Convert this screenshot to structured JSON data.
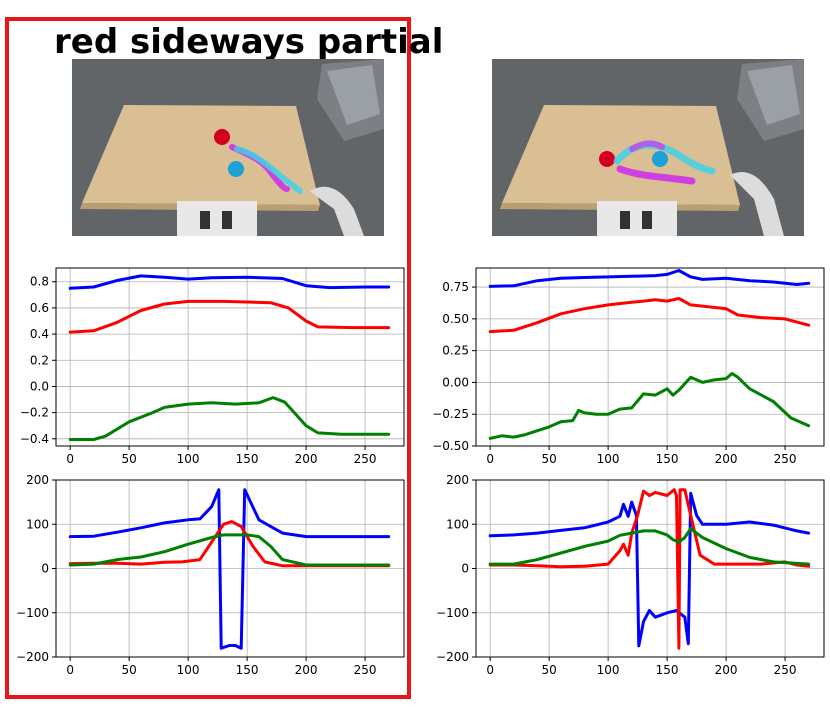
{
  "panel_left": {
    "title": "red sideways partial"
  },
  "photos": [
    {
      "name": "scene-photo-left",
      "table_color": "#d9bf93",
      "floor_color": "#5d6063"
    },
    {
      "name": "scene-photo-right",
      "table_color": "#d9bf93",
      "floor_color": "#5d6063"
    }
  ],
  "colors": {
    "frame": "#e8141a",
    "red": "#ff0000",
    "green": "#008000",
    "blue": "#0000ff",
    "grid": "#b0b0b0"
  },
  "chart_data": [
    {
      "type": "line",
      "id": "left-top",
      "title": "",
      "xlabel": "",
      "ylabel": "",
      "xlim": [
        -12,
        283
      ],
      "ylim": [
        -0.455,
        0.905
      ],
      "xticks": [
        0,
        50,
        100,
        150,
        200,
        250
      ],
      "yticks": [
        -0.4,
        -0.2,
        0.0,
        0.2,
        0.4,
        0.6,
        0.8
      ],
      "ytick_labels": [
        "−0.4",
        "−0.2",
        "0.0",
        "0.2",
        "0.4",
        "0.6",
        "0.8"
      ],
      "grid": true,
      "series": [
        {
          "color": "blue",
          "points": [
            [
              0,
              0.75
            ],
            [
              20,
              0.76
            ],
            [
              40,
              0.81
            ],
            [
              60,
              0.845
            ],
            [
              80,
              0.835
            ],
            [
              100,
              0.82
            ],
            [
              120,
              0.83
            ],
            [
              150,
              0.835
            ],
            [
              180,
              0.825
            ],
            [
              200,
              0.77
            ],
            [
              220,
              0.755
            ],
            [
              250,
              0.76
            ],
            [
              270,
              0.76
            ]
          ]
        },
        {
          "color": "red",
          "points": [
            [
              0,
              0.415
            ],
            [
              20,
              0.425
            ],
            [
              40,
              0.49
            ],
            [
              60,
              0.58
            ],
            [
              80,
              0.63
            ],
            [
              100,
              0.65
            ],
            [
              130,
              0.65
            ],
            [
              170,
              0.64
            ],
            [
              185,
              0.6
            ],
            [
              200,
              0.5
            ],
            [
              210,
              0.455
            ],
            [
              240,
              0.45
            ],
            [
              270,
              0.45
            ]
          ]
        },
        {
          "color": "green",
          "points": [
            [
              0,
              -0.405
            ],
            [
              20,
              -0.405
            ],
            [
              30,
              -0.38
            ],
            [
              50,
              -0.27
            ],
            [
              70,
              -0.2
            ],
            [
              80,
              -0.16
            ],
            [
              100,
              -0.135
            ],
            [
              120,
              -0.125
            ],
            [
              140,
              -0.135
            ],
            [
              160,
              -0.125
            ],
            [
              172,
              -0.085
            ],
            [
              182,
              -0.12
            ],
            [
              200,
              -0.3
            ],
            [
              210,
              -0.355
            ],
            [
              230,
              -0.365
            ],
            [
              270,
              -0.365
            ]
          ]
        }
      ]
    },
    {
      "type": "line",
      "id": "right-top",
      "title": "",
      "xlabel": "",
      "ylabel": "",
      "xlim": [
        -12,
        283
      ],
      "ylim": [
        -0.5,
        0.9
      ],
      "xticks": [
        0,
        50,
        100,
        150,
        200,
        250
      ],
      "yticks": [
        -0.5,
        -0.25,
        0.0,
        0.25,
        0.5,
        0.75
      ],
      "ytick_labels": [
        "−0.50",
        "−0.25",
        "0.00",
        "0.25",
        "0.50",
        "0.75"
      ],
      "grid": true,
      "series": [
        {
          "color": "blue",
          "points": [
            [
              0,
              0.755
            ],
            [
              20,
              0.76
            ],
            [
              40,
              0.8
            ],
            [
              60,
              0.82
            ],
            [
              80,
              0.825
            ],
            [
              100,
              0.83
            ],
            [
              120,
              0.835
            ],
            [
              140,
              0.84
            ],
            [
              150,
              0.85
            ],
            [
              160,
              0.88
            ],
            [
              170,
              0.83
            ],
            [
              180,
              0.81
            ],
            [
              200,
              0.82
            ],
            [
              220,
              0.8
            ],
            [
              240,
              0.79
            ],
            [
              260,
              0.77
            ],
            [
              270,
              0.78
            ]
          ]
        },
        {
          "color": "red",
          "points": [
            [
              0,
              0.4
            ],
            [
              20,
              0.41
            ],
            [
              40,
              0.47
            ],
            [
              60,
              0.54
            ],
            [
              80,
              0.58
            ],
            [
              100,
              0.61
            ],
            [
              120,
              0.63
            ],
            [
              130,
              0.64
            ],
            [
              140,
              0.65
            ],
            [
              150,
              0.64
            ],
            [
              160,
              0.66
            ],
            [
              170,
              0.61
            ],
            [
              180,
              0.6
            ],
            [
              200,
              0.58
            ],
            [
              210,
              0.53
            ],
            [
              230,
              0.51
            ],
            [
              250,
              0.5
            ],
            [
              270,
              0.45
            ]
          ]
        },
        {
          "color": "green",
          "points": [
            [
              0,
              -0.44
            ],
            [
              10,
              -0.42
            ],
            [
              20,
              -0.43
            ],
            [
              30,
              -0.41
            ],
            [
              40,
              -0.38
            ],
            [
              50,
              -0.35
            ],
            [
              60,
              -0.31
            ],
            [
              70,
              -0.3
            ],
            [
              75,
              -0.22
            ],
            [
              80,
              -0.24
            ],
            [
              90,
              -0.25
            ],
            [
              100,
              -0.25
            ],
            [
              110,
              -0.21
            ],
            [
              120,
              -0.2
            ],
            [
              130,
              -0.09
            ],
            [
              140,
              -0.1
            ],
            [
              150,
              -0.05
            ],
            [
              155,
              -0.1
            ],
            [
              160,
              -0.06
            ],
            [
              170,
              0.04
            ],
            [
              180,
              0.0
            ],
            [
              190,
              0.02
            ],
            [
              200,
              0.03
            ],
            [
              205,
              0.07
            ],
            [
              210,
              0.04
            ],
            [
              220,
              -0.05
            ],
            [
              240,
              -0.15
            ],
            [
              255,
              -0.28
            ],
            [
              270,
              -0.34
            ]
          ]
        }
      ]
    },
    {
      "type": "line",
      "id": "left-bottom",
      "title": "",
      "xlabel": "",
      "ylabel": "",
      "xlim": [
        -12,
        283
      ],
      "ylim": [
        -200,
        200
      ],
      "xticks": [
        0,
        50,
        100,
        150,
        200,
        250
      ],
      "yticks": [
        -200,
        -100,
        0,
        100,
        200
      ],
      "ytick_labels": [
        "−200",
        "−100",
        "0",
        "100",
        "200"
      ],
      "grid": true,
      "series": [
        {
          "color": "blue",
          "points": [
            [
              0,
              72
            ],
            [
              20,
              73
            ],
            [
              40,
              82
            ],
            [
              60,
              92
            ],
            [
              80,
              103
            ],
            [
              100,
              110
            ],
            [
              110,
              112
            ],
            [
              120,
              140
            ],
            [
              126,
              178
            ],
            [
              128,
              -180
            ],
            [
              135,
              -174
            ],
            [
              140,
              -174
            ],
            [
              145,
              -180
            ],
            [
              148,
              178
            ],
            [
              153,
              150
            ],
            [
              160,
              110
            ],
            [
              170,
              95
            ],
            [
              180,
              80
            ],
            [
              200,
              72
            ],
            [
              270,
              72
            ]
          ]
        },
        {
          "color": "red",
          "points": [
            [
              0,
              11
            ],
            [
              20,
              12
            ],
            [
              40,
              12
            ],
            [
              60,
              10
            ],
            [
              80,
              14
            ],
            [
              95,
              15
            ],
            [
              110,
              20
            ],
            [
              120,
              60
            ],
            [
              130,
              100
            ],
            [
              137,
              106
            ],
            [
              145,
              95
            ],
            [
              155,
              50
            ],
            [
              165,
              15
            ],
            [
              180,
              6
            ],
            [
              200,
              6
            ],
            [
              270,
              6
            ]
          ]
        },
        {
          "color": "green",
          "points": [
            [
              0,
              8
            ],
            [
              20,
              10
            ],
            [
              40,
              20
            ],
            [
              60,
              26
            ],
            [
              80,
              38
            ],
            [
              100,
              55
            ],
            [
              120,
              70
            ],
            [
              130,
              76
            ],
            [
              150,
              76
            ],
            [
              160,
              72
            ],
            [
              170,
              50
            ],
            [
              180,
              20
            ],
            [
              200,
              8
            ],
            [
              270,
              8
            ]
          ]
        }
      ]
    },
    {
      "type": "line",
      "id": "right-bottom",
      "title": "",
      "xlabel": "",
      "ylabel": "",
      "xlim": [
        -12,
        283
      ],
      "ylim": [
        -200,
        200
      ],
      "xticks": [
        0,
        50,
        100,
        150,
        200,
        250
      ],
      "yticks": [
        -200,
        -100,
        0,
        100,
        200
      ],
      "ytick_labels": [
        "−200",
        "−100",
        "0",
        "100",
        "200"
      ],
      "grid": true,
      "series": [
        {
          "color": "blue",
          "points": [
            [
              0,
              74
            ],
            [
              20,
              76
            ],
            [
              40,
              80
            ],
            [
              60,
              86
            ],
            [
              80,
              92
            ],
            [
              100,
              105
            ],
            [
              110,
              118
            ],
            [
              113,
              145
            ],
            [
              117,
              118
            ],
            [
              120,
              150
            ],
            [
              124,
              120
            ],
            [
              126,
              -175
            ],
            [
              130,
              -120
            ],
            [
              135,
              -95
            ],
            [
              140,
              -110
            ],
            [
              150,
              -100
            ],
            [
              158,
              -95
            ],
            [
              165,
              -110
            ],
            [
              168,
              -170
            ],
            [
              170,
              170
            ],
            [
              175,
              120
            ],
            [
              180,
              100
            ],
            [
              200,
              100
            ],
            [
              220,
              105
            ],
            [
              240,
              98
            ],
            [
              260,
              85
            ],
            [
              270,
              80
            ]
          ]
        },
        {
          "color": "red",
          "points": [
            [
              0,
              8
            ],
            [
              20,
              8
            ],
            [
              40,
              6
            ],
            [
              60,
              4
            ],
            [
              80,
              5
            ],
            [
              100,
              10
            ],
            [
              110,
              40
            ],
            [
              113,
              55
            ],
            [
              117,
              30
            ],
            [
              120,
              80
            ],
            [
              125,
              120
            ],
            [
              130,
              175
            ],
            [
              135,
              165
            ],
            [
              140,
              172
            ],
            [
              150,
              165
            ],
            [
              156,
              178
            ],
            [
              158,
              165
            ],
            [
              160,
              -180
            ],
            [
              161,
              178
            ],
            [
              165,
              178
            ],
            [
              170,
              120
            ],
            [
              178,
              30
            ],
            [
              190,
              10
            ],
            [
              210,
              10
            ],
            [
              230,
              10
            ],
            [
              250,
              15
            ],
            [
              260,
              8
            ],
            [
              270,
              5
            ]
          ]
        },
        {
          "color": "green",
          "points": [
            [
              0,
              10
            ],
            [
              20,
              10
            ],
            [
              40,
              20
            ],
            [
              60,
              35
            ],
            [
              80,
              50
            ],
            [
              100,
              62
            ],
            [
              110,
              75
            ],
            [
              120,
              80
            ],
            [
              130,
              85
            ],
            [
              140,
              85
            ],
            [
              150,
              76
            ],
            [
              155,
              65
            ],
            [
              160,
              60
            ],
            [
              165,
              70
            ],
            [
              170,
              90
            ],
            [
              180,
              70
            ],
            [
              200,
              45
            ],
            [
              220,
              25
            ],
            [
              240,
              15
            ],
            [
              270,
              10
            ]
          ]
        }
      ]
    }
  ]
}
